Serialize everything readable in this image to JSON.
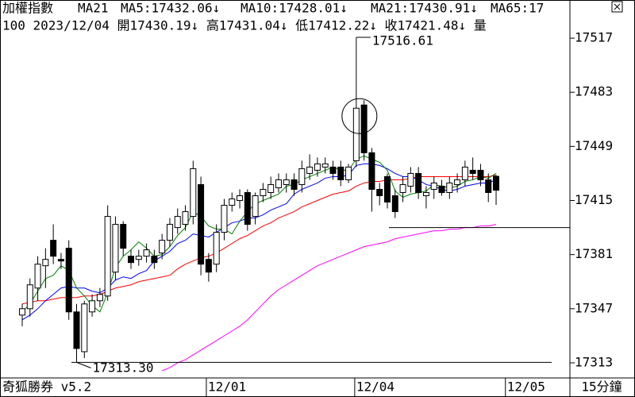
{
  "chart_data": {
    "type": "candlestick",
    "header": [
      "加權指數",
      "MA21",
      "MA5:17432.06↓",
      "MA10:17428.01↓",
      "MA21:17430.91↓",
      "MA65:17"
    ],
    "header_colors": [
      "#000000",
      "#000000",
      "#008000",
      "#0000ff",
      "#ff0000",
      "#ff00ff"
    ],
    "info_line": "100 2023/12/04 開17430.19↓ 高17431.04↓ 低17412.22↓ 收17421.48↓ 量",
    "footer_left": "奇狐勝券 v5.2",
    "footer_right": "15分鐘",
    "high_annotation": "17516.61",
    "low_annotation": "17313.30",
    "low_value": 17313.3,
    "level_line": 17398,
    "xlim": [
      -2.86,
      70.5
    ],
    "xticks": [
      {
        "value": 23.7,
        "label": "12/01"
      },
      {
        "value": 42.8,
        "label": "12/04"
      },
      {
        "value": 62.2,
        "label": "12/05"
      }
    ],
    "ylim": [
      17304,
      17530
    ],
    "yticks": [
      17313,
      17347,
      17381,
      17415,
      17449,
      17483,
      17517
    ],
    "open": [
      17343,
      17347,
      17360,
      17374,
      17390,
      17378,
      17385,
      17345,
      17320,
      17345,
      17352,
      17355,
      17370,
      17400,
      17380,
      17378,
      17380,
      17380,
      17382,
      17390,
      17398,
      17400,
      17405,
      17425,
      17378,
      17375,
      17395,
      17412,
      17415,
      17420,
      17405,
      17418,
      17420,
      17423,
      17425,
      17428,
      17425,
      17432,
      17434,
      17436,
      17436,
      17436,
      17428,
      17440,
      17475,
      17445,
      17422,
      17430,
      17418,
      17420,
      17424,
      17432,
      17418,
      17422,
      17424,
      17420,
      17425,
      17428,
      17434,
      17434,
      17428,
      17430.19
    ],
    "high": [
      17350,
      17366,
      17380,
      17385,
      17400,
      17382,
      17390,
      17350,
      17352,
      17356,
      17360,
      17412,
      17405,
      17402,
      17384,
      17384,
      17388,
      17384,
      17394,
      17404,
      17410,
      17412,
      17440,
      17430,
      17382,
      17400,
      17416,
      17420,
      17422,
      17422,
      17420,
      17426,
      17430,
      17432,
      17432,
      17432,
      17440,
      17444,
      17442,
      17442,
      17440,
      17440,
      17438,
      17516.61,
      17478,
      17448,
      17426,
      17432,
      17422,
      17430,
      17436,
      17436,
      17424,
      17430,
      17428,
      17430,
      17432,
      17440,
      17442,
      17438,
      17432,
      17431.04
    ],
    "low": [
      17336,
      17342,
      17352,
      17360,
      17375,
      17372,
      17340,
      17313.3,
      17316,
      17342,
      17348,
      17352,
      17365,
      17380,
      17372,
      17374,
      17376,
      17372,
      17378,
      17386,
      17394,
      17396,
      17400,
      17368,
      17364,
      17370,
      17390,
      17408,
      17410,
      17396,
      17400,
      17414,
      17416,
      17420,
      17420,
      17418,
      17420,
      17428,
      17430,
      17432,
      17428,
      17424,
      17426,
      17436,
      17440,
      17408,
      17412,
      17410,
      17404,
      17414,
      17420,
      17416,
      17410,
      17416,
      17418,
      17416,
      17420,
      17424,
      17428,
      17424,
      17414,
      17412.22
    ],
    "close": [
      17347,
      17362,
      17375,
      17378,
      17380,
      17377,
      17345,
      17322,
      17350,
      17352,
      17356,
      17405,
      17400,
      17385,
      17376,
      17380,
      17384,
      17376,
      17390,
      17400,
      17405,
      17408,
      17435,
      17375,
      17370,
      17395,
      17412,
      17416,
      17418,
      17400,
      17418,
      17422,
      17425,
      17428,
      17428,
      17422,
      17435,
      17436,
      17438,
      17438,
      17432,
      17428,
      17436,
      17473,
      17445,
      17422,
      17418,
      17414,
      17408,
      17425,
      17432,
      17420,
      17420,
      17426,
      17420,
      17426,
      17428,
      17436,
      17432,
      17428,
      17420,
      17421.48
    ],
    "series": [
      {
        "color": "#ff00ff",
        "values": [
          null,
          null,
          null,
          null,
          null,
          null,
          null,
          null,
          null,
          null,
          null,
          null,
          null,
          null,
          null,
          null,
          null,
          null,
          17308,
          17310,
          17313,
          17315,
          17318,
          17321,
          17324,
          17327,
          17330,
          17333,
          17336,
          17340,
          17345,
          17350,
          17355,
          17359,
          17362,
          17365,
          17368,
          17371,
          17374,
          17376,
          17378,
          17380,
          17382,
          17384,
          17386,
          17387,
          17388,
          17389,
          17391,
          17392,
          17393,
          17394,
          17395,
          17396,
          17396,
          17397,
          17397,
          17398,
          17398,
          17399,
          17399,
          17400
        ]
      },
      {
        "color": "#ff0000",
        "values": [
          17350,
          17351,
          17352,
          17352,
          17353,
          17354,
          17354,
          17354,
          17355,
          17355,
          17356,
          17358,
          17360,
          17361,
          17362,
          17364,
          17365,
          17366,
          17367,
          17368,
          17372,
          17375,
          17377,
          17379,
          17380,
          17382,
          17385,
          17388,
          17391,
          17393,
          17396,
          17399,
          17401,
          17404,
          17406,
          17408,
          17411,
          17413,
          17415,
          17417,
          17419,
          17420,
          17421,
          17424,
          17426,
          17427,
          17427,
          17428,
          17428,
          17428,
          17429,
          17430,
          17430,
          17430,
          17430,
          17430,
          17430,
          17430,
          17430,
          17430,
          17430,
          17430.91
        ]
      },
      {
        "color": "#0000ff",
        "values": [
          17340,
          17343,
          17347,
          17352,
          17356,
          17360,
          17361,
          17360,
          17360,
          17358,
          17357,
          17360,
          17365,
          17367,
          17366,
          17369,
          17371,
          17377,
          17380,
          17383,
          17388,
          17390,
          17394,
          17393,
          17392,
          17395,
          17398,
          17401,
          17402,
          17404,
          17404,
          17406,
          17409,
          17411,
          17413,
          17419,
          17422,
          17424,
          17426,
          17429,
          17430,
          17430,
          17431,
          17437,
          17438,
          17438,
          17437,
          17435,
          17432,
          17430,
          17430,
          17428,
          17425,
          17424,
          17422,
          17421,
          17422,
          17424,
          17425,
          17426,
          17426,
          17428.01
        ]
      },
      {
        "color": "#008000",
        "values": [
          17345,
          17350,
          17358,
          17366,
          17368,
          17374,
          17371,
          17360,
          17355,
          17349,
          17345,
          17357,
          17373,
          17380,
          17384,
          17389,
          17385,
          17380,
          17381,
          17386,
          17393,
          17398,
          17408,
          17405,
          17399,
          17397,
          17397,
          17394,
          17402,
          17408,
          17413,
          17415,
          17417,
          17419,
          17424,
          17425,
          17428,
          17430,
          17432,
          17434,
          17436,
          17434,
          17434,
          17441,
          17443,
          17441,
          17439,
          17434,
          17421,
          17417,
          17419,
          17420,
          17421,
          17425,
          17424,
          17423,
          17424,
          17427,
          17428,
          17430,
          17429,
          17432.06
        ]
      }
    ]
  }
}
